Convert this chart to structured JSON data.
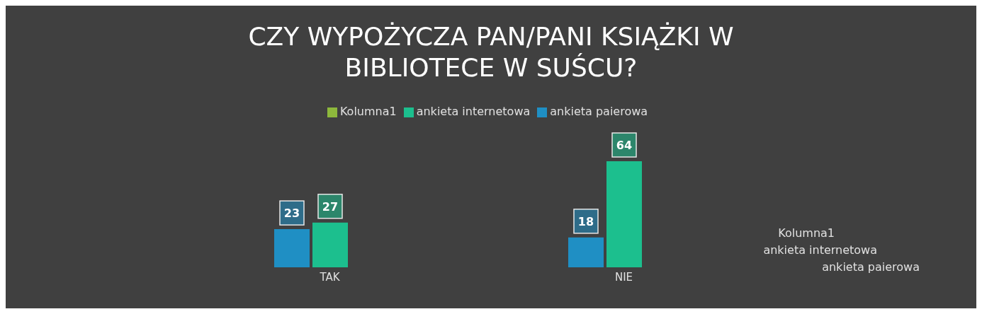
{
  "chart_data": {
    "type": "bar",
    "title": "CZY WYPOŻYCZA PAN/PANI KSIĄŻKI W BIBLIOTECE W SUŚCU?",
    "categories": [
      "TAK",
      "NIE"
    ],
    "series": [
      {
        "name": "ankieta paierowa",
        "color": "#1f8fc4",
        "values": [
          23,
          18
        ]
      },
      {
        "name": "ankieta internetowa",
        "color": "#1cbf8e",
        "values": [
          27,
          64
        ]
      },
      {
        "name": "Kolumna1",
        "color": "#8db83c",
        "values": [
          null,
          null
        ]
      }
    ],
    "data_labels": true,
    "legend": "top",
    "grid": false
  }
}
